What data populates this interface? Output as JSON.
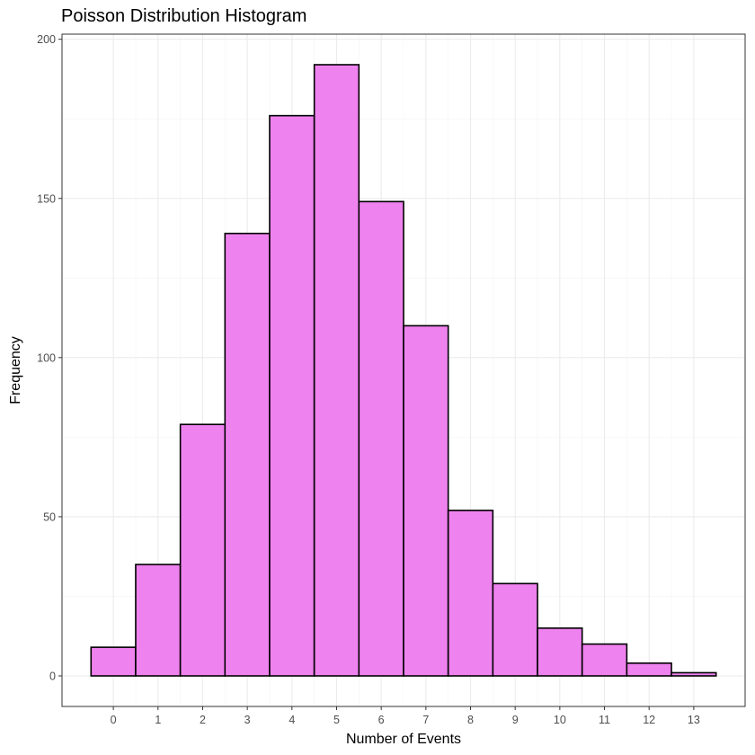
{
  "chart_data": {
    "type": "bar",
    "title": "Poisson Distribution Histogram",
    "xlabel": "Number of Events",
    "ylabel": "Frequency",
    "categories": [
      "0",
      "1",
      "2",
      "3",
      "4",
      "5",
      "6",
      "7",
      "8",
      "9",
      "10",
      "11",
      "12",
      "13"
    ],
    "values": [
      9,
      35,
      79,
      139,
      176,
      192,
      149,
      110,
      52,
      29,
      15,
      10,
      4,
      1
    ],
    "x_ticks": [
      0,
      1,
      2,
      3,
      4,
      5,
      6,
      7,
      8,
      9,
      10,
      11,
      12,
      13
    ],
    "y_ticks": [
      0,
      50,
      100,
      150,
      200
    ],
    "xlim": [
      -1.15,
      14.15
    ],
    "ylim": [
      -9.6,
      201.6
    ],
    "grid": true,
    "colors": {
      "bar_fill": "#EE82EE",
      "bar_outline": "#000000"
    }
  }
}
